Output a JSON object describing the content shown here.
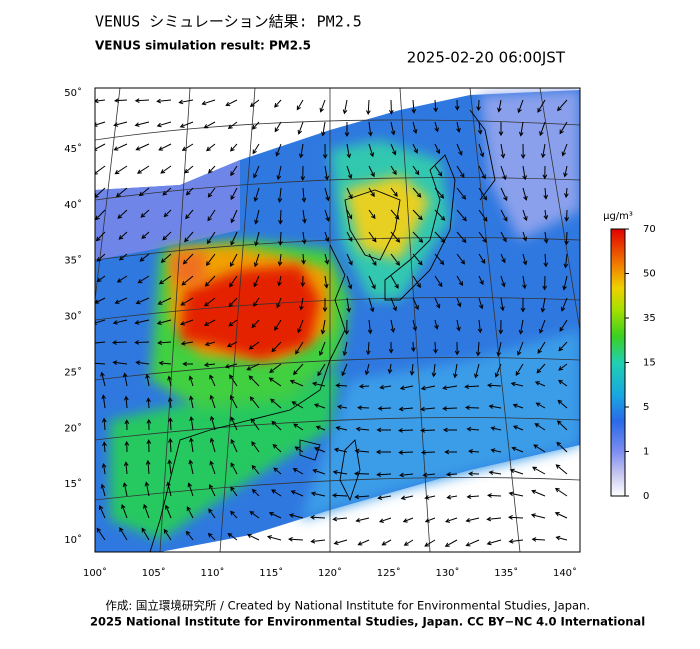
{
  "header": {
    "title": "VENUS シミュレーション結果: PM2.5",
    "subtitle": "VENUS simulation result: PM2.5",
    "timestamp": "2025-02-20 06:00JST"
  },
  "map": {
    "latitude_labels": [
      "50˚",
      "45˚",
      "40˚",
      "35˚",
      "30˚",
      "25˚",
      "20˚",
      "15˚",
      "10˚"
    ],
    "longitude_labels": [
      "100˚",
      "105˚",
      "110˚",
      "115˚",
      "120˚",
      "125˚",
      "130˚",
      "135˚",
      "140˚"
    ]
  },
  "colorbar": {
    "unit": "μg/m³",
    "ticks": [
      70,
      50,
      35,
      15,
      5,
      1,
      0
    ]
  },
  "footer": {
    "credit": "作成: 国立環境研究所 / Created by National Institute for Environmental Studies, Japan.",
    "license": "2025 National Institute for Environmental Studies, Japan. CC BY−NC 4.0 International"
  }
}
